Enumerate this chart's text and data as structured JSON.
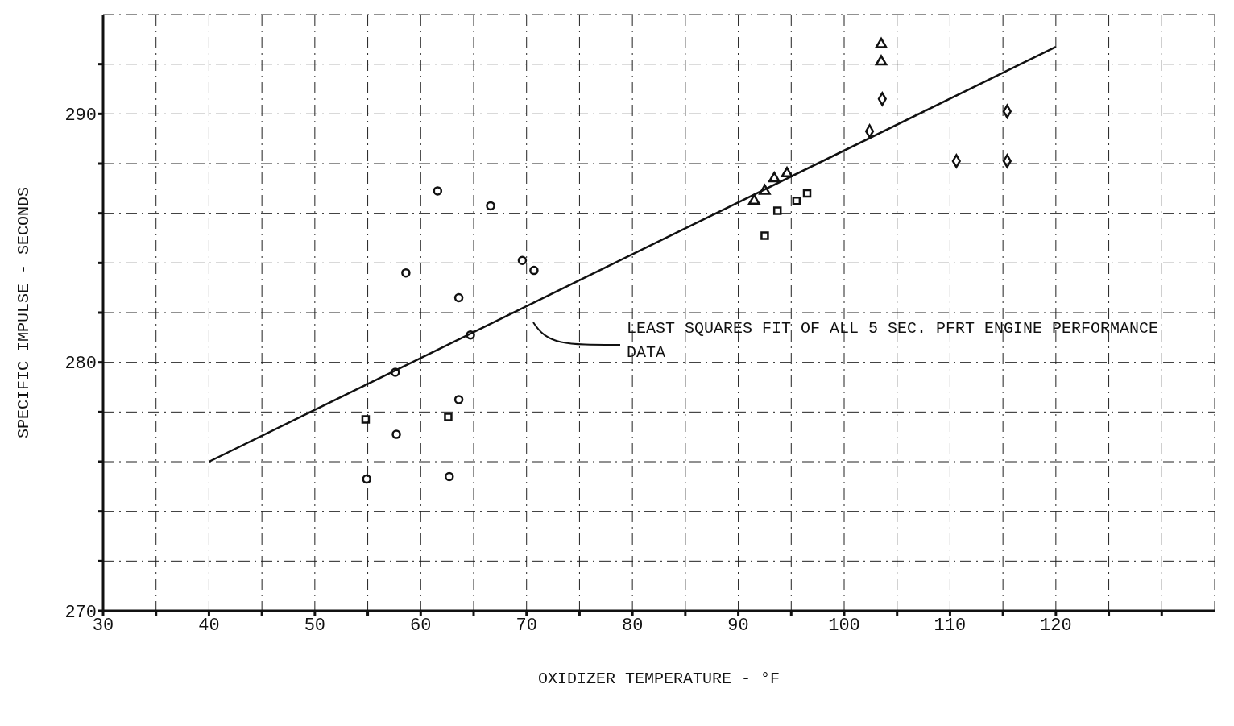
{
  "chart_data": {
    "type": "scatter",
    "xlabel": "OXIDIZER TEMPERATURE  -  °F",
    "ylabel": "SPECIFIC IMPULSE  -  SECONDS",
    "xlim": [
      30,
      135
    ],
    "xticks": [
      30,
      {
        "value": 35,
        "label": null
      },
      40,
      {
        "value": 45,
        "label": null
      },
      50,
      {
        "value": 55,
        "label": null
      },
      60,
      {
        "value": 65,
        "label": null
      },
      70,
      {
        "value": 75,
        "label": null
      },
      80,
      {
        "value": 85,
        "label": null
      },
      90,
      {
        "value": 95,
        "label": null
      },
      100,
      {
        "value": 105,
        "label": null
      },
      110,
      {
        "value": 115,
        "label": null
      },
      120,
      {
        "value": 125,
        "label": null
      },
      {
        "value": 130,
        "label": null
      }
    ],
    "ylim": [
      270,
      294
    ],
    "yticks": [
      270,
      {
        "value": 272,
        "label": null
      },
      {
        "value": 274,
        "label": null
      },
      {
        "value": 276,
        "label": null
      },
      {
        "value": 278,
        "label": null
      },
      280,
      {
        "value": 282,
        "label": null
      },
      {
        "value": 284,
        "label": null
      },
      {
        "value": 286,
        "label": null
      },
      {
        "value": 288,
        "label": null
      },
      290,
      {
        "value": 292,
        "label": null
      }
    ],
    "grid": true,
    "series": [
      {
        "marker": "circle",
        "color": "#111111",
        "x": [
          54.9,
          62.7,
          57.7,
          63.6,
          57.6,
          64.7,
          63.6,
          58.6,
          69.6,
          70.7,
          61.6,
          66.6
        ],
        "values": [
          275.3,
          275.4,
          277.1,
          278.5,
          279.6,
          281.1,
          282.6,
          283.6,
          284.1,
          283.7,
          286.9,
          286.3
        ]
      },
      {
        "marker": "square",
        "color": "#111111",
        "x": [
          54.8,
          62.6,
          92.5,
          93.7,
          95.5,
          96.5
        ],
        "values": [
          277.7,
          277.8,
          285.1,
          286.1,
          286.5,
          286.8
        ]
      },
      {
        "marker": "triangle",
        "color": "#111111",
        "x": [
          91.5,
          92.5,
          93.4,
          94.6,
          103.5,
          103.5
        ],
        "values": [
          286.5,
          286.9,
          287.4,
          287.6,
          292.8,
          292.1
        ]
      },
      {
        "marker": "diamond",
        "color": "#111111",
        "x": [
          103.6,
          102.4,
          115.4,
          110.6,
          115.4
        ],
        "values": [
          290.6,
          289.3,
          290.1,
          288.1,
          288.1
        ]
      },
      {
        "type": "line",
        "marker": "none",
        "line_style": "solid",
        "color": "#111111",
        "x": [
          40,
          120
        ],
        "values": [
          276,
          292.7
        ]
      }
    ],
    "annotations": [
      "LEAST SQUARES FIT OF ALL 5 SEC. PFRT ENGINE PERFORMANCE DATA"
    ]
  }
}
